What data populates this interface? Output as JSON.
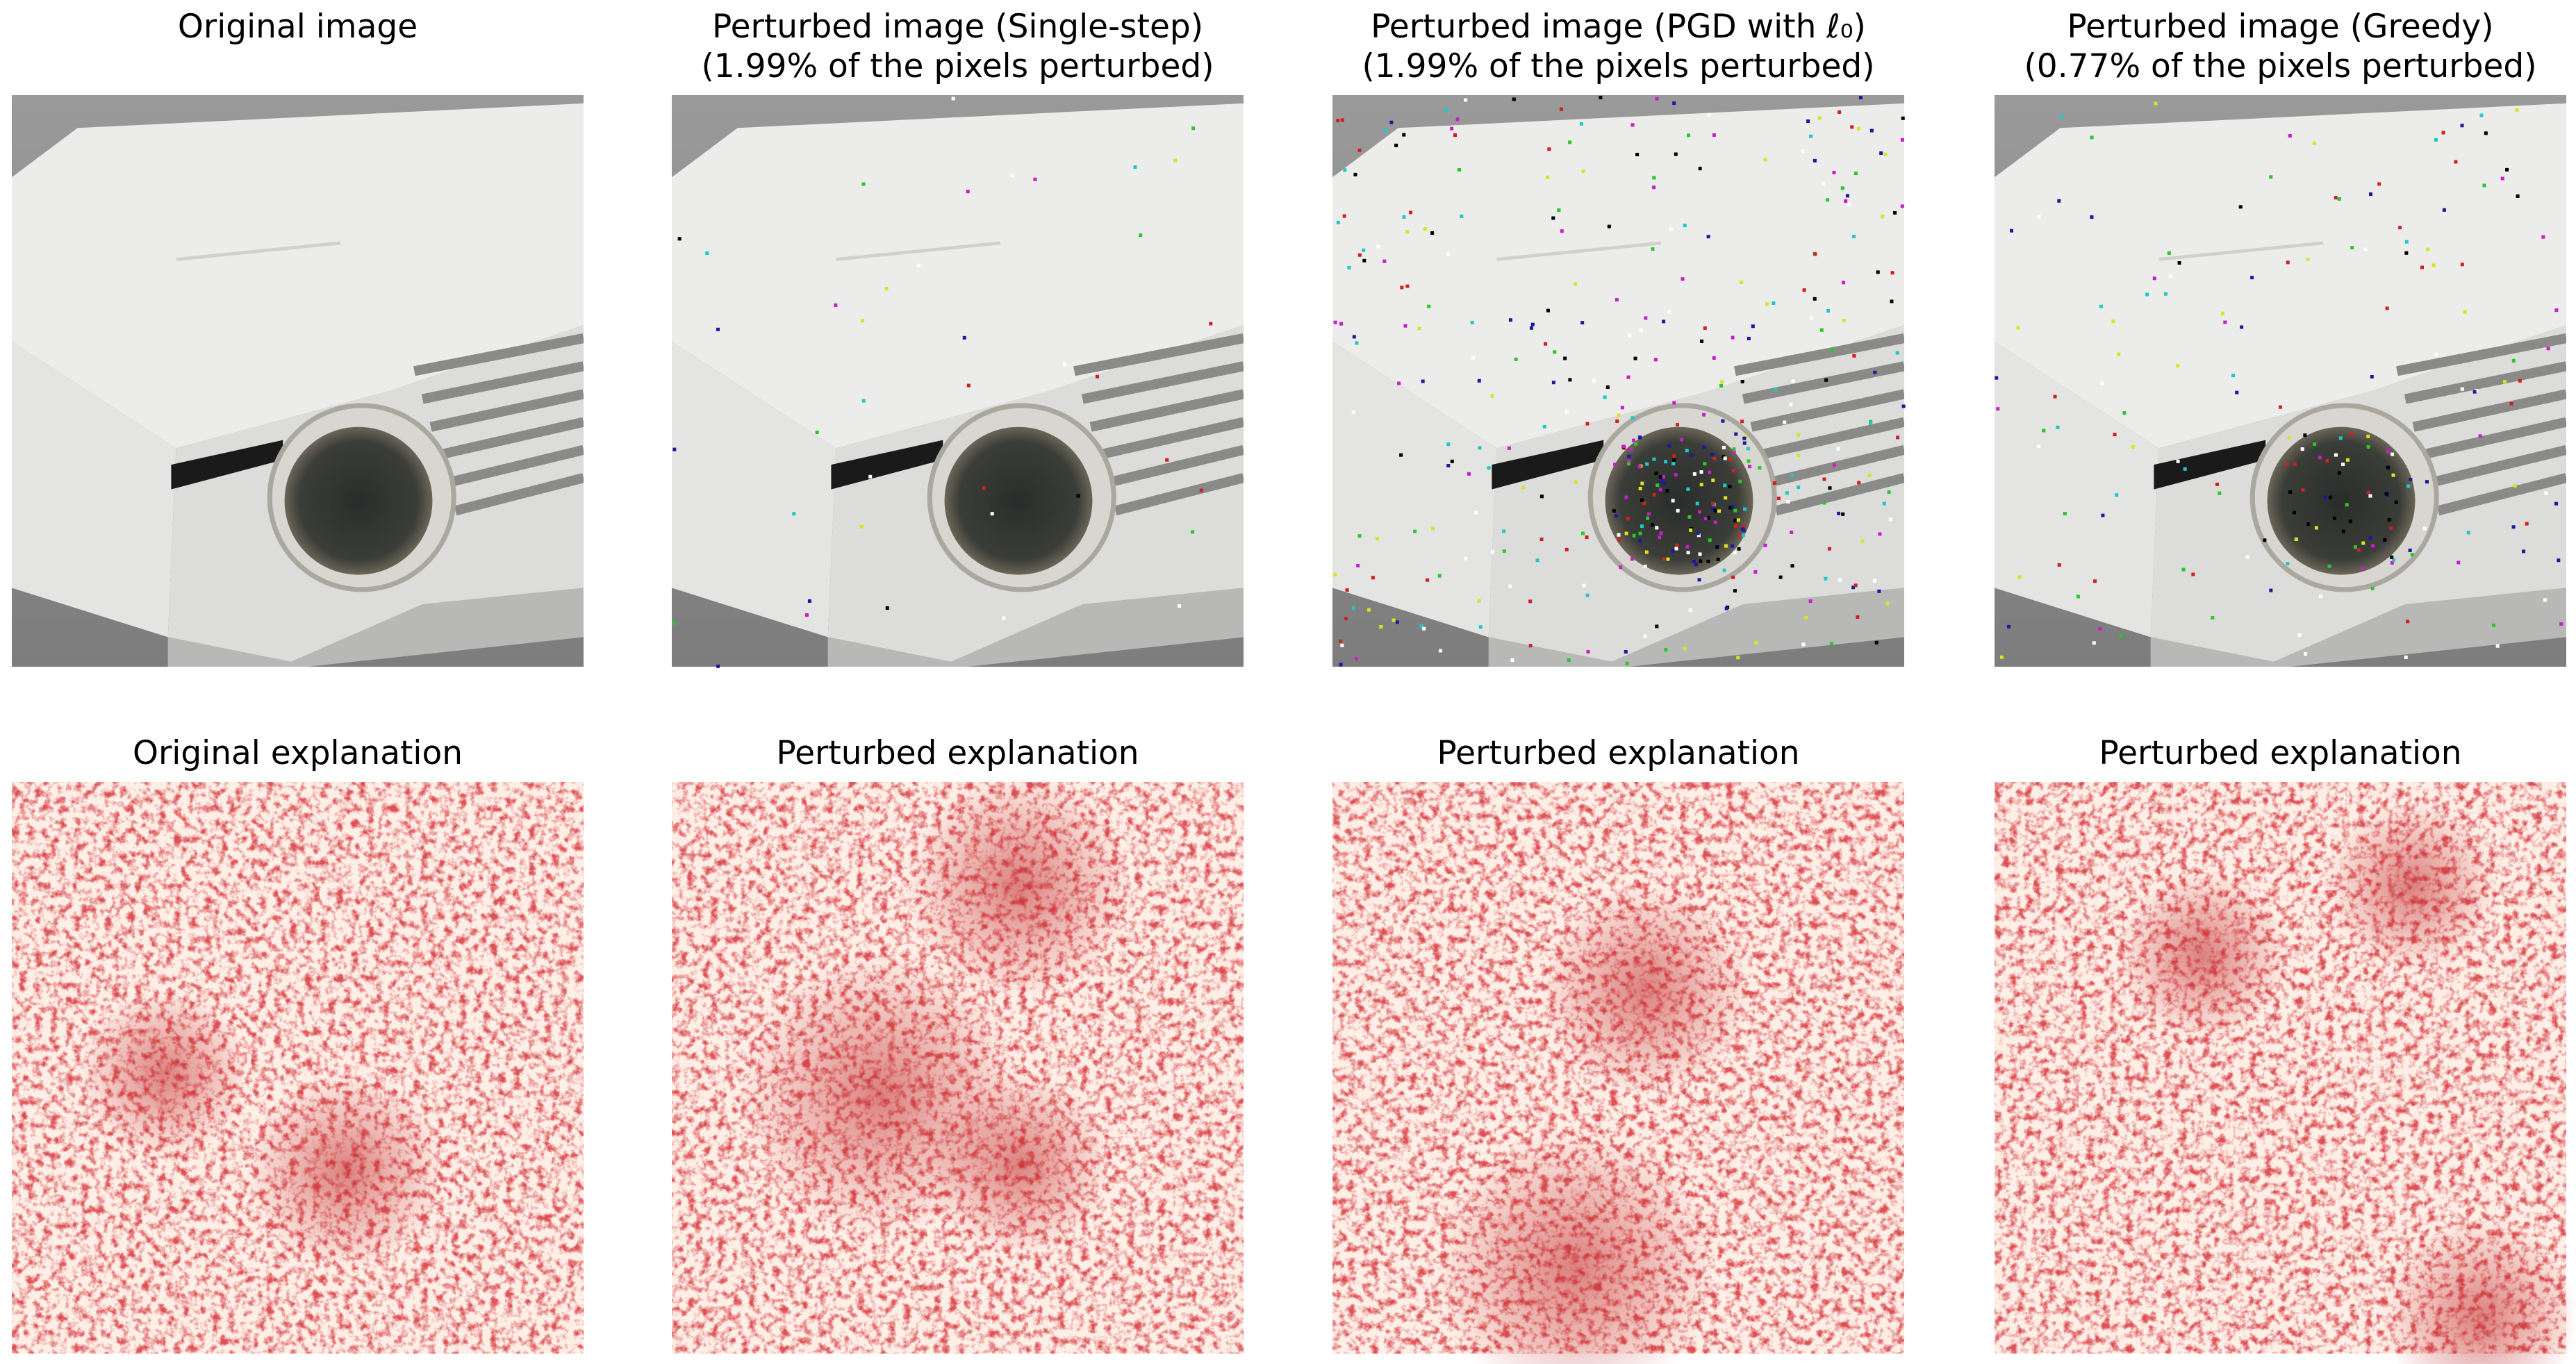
{
  "rows": [
    {
      "panels": [
        {
          "title": "Original image"
        },
        {
          "title": "Perturbed image (Single-step)",
          "subtitle": "(1.99% of the pixels perturbed)"
        },
        {
          "title": "Perturbed image (PGD with ℓ₀)",
          "subtitle": "(1.99% of the pixels perturbed)"
        },
        {
          "title": "Perturbed image (Greedy)",
          "subtitle": "(0.77% of the pixels perturbed)"
        }
      ]
    },
    {
      "panels": [
        {
          "title": "Original explanation"
        },
        {
          "title": "Perturbed explanation"
        },
        {
          "title": "Perturbed explanation"
        },
        {
          "title": "Perturbed explanation"
        }
      ]
    }
  ]
}
